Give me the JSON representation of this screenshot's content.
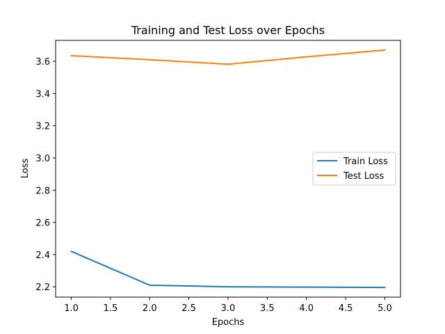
{
  "chart_data": {
    "type": "line",
    "title": "Training and Test Loss over Epochs",
    "xlabel": "Epochs",
    "ylabel": "Loss",
    "x": [
      1,
      2,
      3,
      4,
      5
    ],
    "series": [
      {
        "name": "Train Loss",
        "values": [
          2.42,
          2.21,
          2.2,
          2.198,
          2.196
        ],
        "color": "#1f77b4"
      },
      {
        "name": "Test Loss",
        "values": [
          3.635,
          3.61,
          3.582,
          3.628,
          3.67
        ],
        "color": "#ff7f0e"
      }
    ],
    "xlim": [
      0.8,
      5.2
    ],
    "ylim": [
      2.136,
      3.73
    ],
    "xticks": [
      1.0,
      1.5,
      2.0,
      2.5,
      3.0,
      3.5,
      4.0,
      4.5,
      5.0
    ],
    "xtick_labels": [
      "1.0",
      "1.5",
      "2.0",
      "2.5",
      "3.0",
      "3.5",
      "4.0",
      "4.5",
      "5.0"
    ],
    "yticks": [
      2.2,
      2.4,
      2.6,
      2.8,
      3.0,
      3.2,
      3.4,
      3.6
    ],
    "ytick_labels": [
      "2.2",
      "2.4",
      "2.6",
      "2.8",
      "3.0",
      "3.2",
      "3.4",
      "3.6"
    ],
    "grid": false,
    "legend_position": "center-right"
  }
}
